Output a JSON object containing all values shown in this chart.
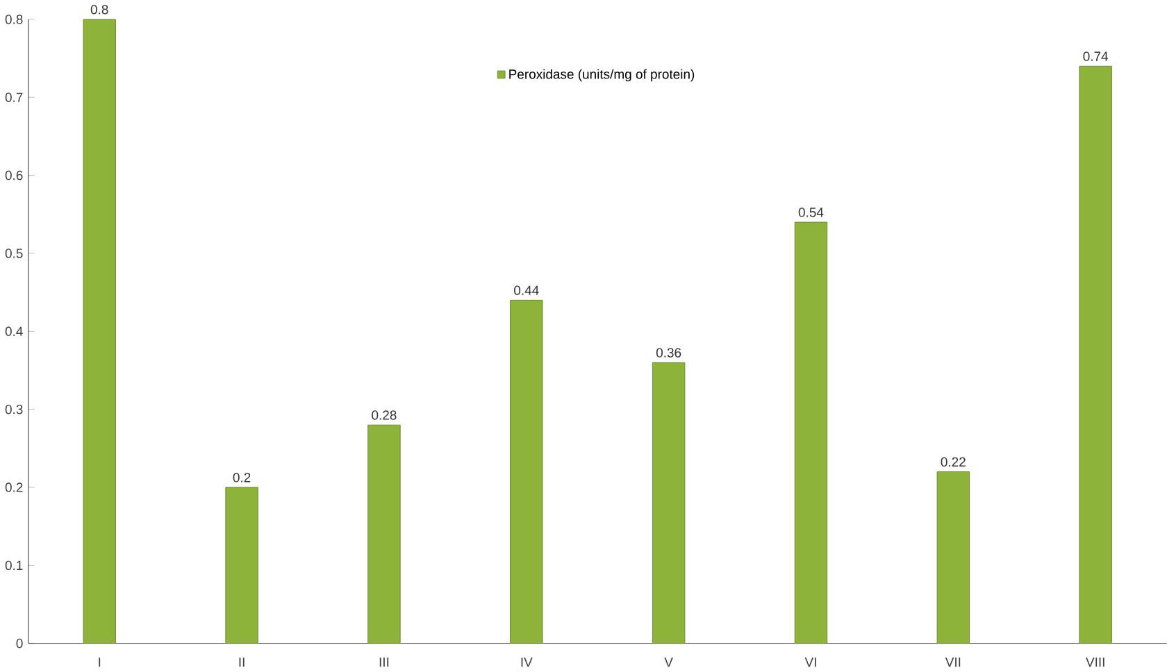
{
  "chart_data": {
    "type": "bar",
    "categories": [
      "I",
      "II",
      "III",
      "IV",
      "V",
      "VI",
      "VII",
      "VIII"
    ],
    "series": [
      {
        "name": "Peroxidase (units/mg of protein)",
        "color": "#8db33a",
        "values": [
          0.8,
          0.2,
          0.28,
          0.44,
          0.36,
          0.54,
          0.22,
          0.74
        ]
      }
    ],
    "ylim": [
      0,
      0.8
    ],
    "yticks": [
      0,
      0.1,
      0.2,
      0.3,
      0.4,
      0.5,
      0.6,
      0.7,
      0.8
    ],
    "data_labels": true,
    "legend": "top",
    "grid": false
  }
}
